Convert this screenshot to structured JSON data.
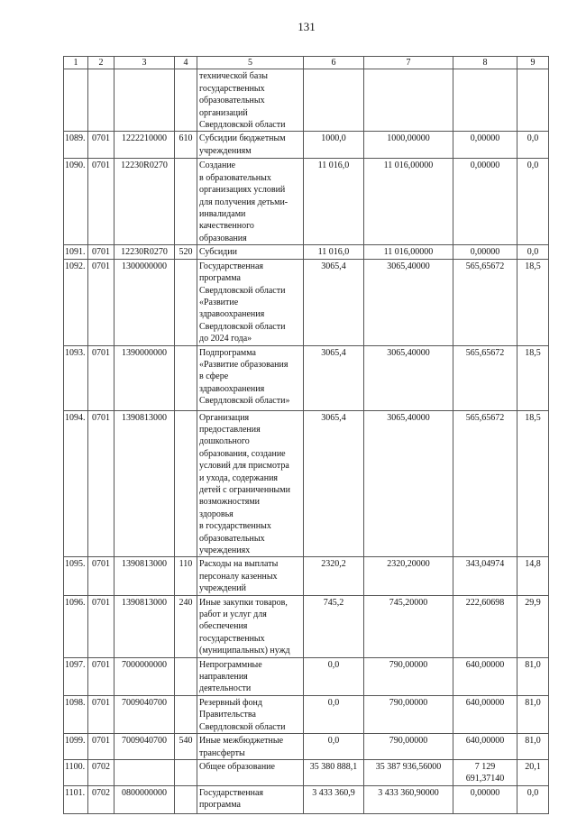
{
  "page_number": "131",
  "headers": [
    "1",
    "2",
    "3",
    "4",
    "5",
    "6",
    "7",
    "8",
    "9"
  ],
  "rows": [
    {
      "n": "",
      "sec": "",
      "code": "",
      "type": "",
      "desc": "технической базы\nгосударственных\nобразовательных\nорганизаций\nСвердловской области",
      "v6": "",
      "v7": "",
      "v8": "",
      "v9": ""
    },
    {
      "n": "1089.",
      "sec": "0701",
      "code": "1222210000",
      "type": "610",
      "desc": "Субсидии бюджетным\nучреждениям",
      "v6": "1000,0",
      "v7": "1000,00000",
      "v8": "0,00000",
      "v9": "0,0"
    },
    {
      "n": "1090.",
      "sec": "0701",
      "code": "12230R0270",
      "type": "",
      "desc": "Создание\nв образовательных\nорганизациях условий\nдля получения детьми-\nинвалидами\nкачественного\nобразования",
      "v6": "11 016,0",
      "v7": "11 016,00000",
      "v8": "0,00000",
      "v9": "0,0"
    },
    {
      "n": "1091.",
      "sec": "0701",
      "code": "12230R0270",
      "type": "520",
      "desc": "Субсидии",
      "v6": "11 016,0",
      "v7": "11 016,00000",
      "v8": "0,00000",
      "v9": "0,0"
    },
    {
      "n": "1092.",
      "sec": "0701",
      "code": "1300000000",
      "type": "",
      "desc": "Государственная\nпрограмма\nСвердловской области\n«Развитие\nздравоохранения\nСвердловской области\nдо 2024 года»",
      "v6": "3065,4",
      "v7": "3065,40000",
      "v8": "565,65672",
      "v9": "18,5"
    },
    {
      "n": "1093.",
      "sec": "0701",
      "code": "1390000000",
      "type": "",
      "desc": "Подпрограмма\n«Развитие образования\nв сфере\nздравоохранения\nСвердловской области»",
      "v6": "3065,4",
      "v7": "3065,40000",
      "v8": "565,65672",
      "v9": "18,5"
    },
    {
      "n": "1094.",
      "sec": "0701",
      "code": "1390813000",
      "type": "",
      "desc": "Организация\nпредоставления\nдошкольного\nобразования, создание\nусловий для присмотра\nи ухода, содержания\nдетей с ограниченными\nвозможностями\nздоровья\nв государственных\nобразовательных\nучреждениях",
      "v6": "3065,4",
      "v7": "3065,40000",
      "v8": "565,65672",
      "v9": "18,5"
    },
    {
      "n": "1095.",
      "sec": "0701",
      "code": "1390813000",
      "type": "110",
      "desc": "Расходы на выплаты\nперсоналу казенных\nучреждений",
      "v6": "2320,2",
      "v7": "2320,20000",
      "v8": "343,04974",
      "v9": "14,8"
    },
    {
      "n": "1096.",
      "sec": "0701",
      "code": "1390813000",
      "type": "240",
      "desc": "Иные закупки товаров,\nработ и услуг для\nобеспечения\nгосударственных\n(муниципальных) нужд",
      "v6": "745,2",
      "v7": "745,20000",
      "v8": "222,60698",
      "v9": "29,9"
    },
    {
      "n": "1097.",
      "sec": "0701",
      "code": "7000000000",
      "type": "",
      "desc": "Непрограммные\nнаправления\nдеятельности",
      "v6": "0,0",
      "v7": "790,00000",
      "v8": "640,00000",
      "v9": "81,0"
    },
    {
      "n": "1098.",
      "sec": "0701",
      "code": "7009040700",
      "type": "",
      "desc": "Резервный фонд\nПравительства\nСвердловской области",
      "v6": "0,0",
      "v7": "790,00000",
      "v8": "640,00000",
      "v9": "81,0"
    },
    {
      "n": "1099.",
      "sec": "0701",
      "code": "7009040700",
      "type": "540",
      "desc": "Иные межбюджетные\nтрансферты",
      "v6": "0,0",
      "v7": "790,00000",
      "v8": "640,00000",
      "v9": "81,0"
    },
    {
      "n": "1100.",
      "sec": "0702",
      "code": "",
      "type": "",
      "desc": "Общее образование",
      "v6": "35 380 888,1",
      "v7": "35 387 936,56000",
      "v8": "7 129 691,37140",
      "v9": "20,1"
    },
    {
      "n": "1101.",
      "sec": "0702",
      "code": "0800000000",
      "type": "",
      "desc": "Государственная\nпрограмма",
      "v6": "3 433 360,9",
      "v7": "3 433 360,90000",
      "v8": "0,00000",
      "v9": "0,0"
    }
  ]
}
